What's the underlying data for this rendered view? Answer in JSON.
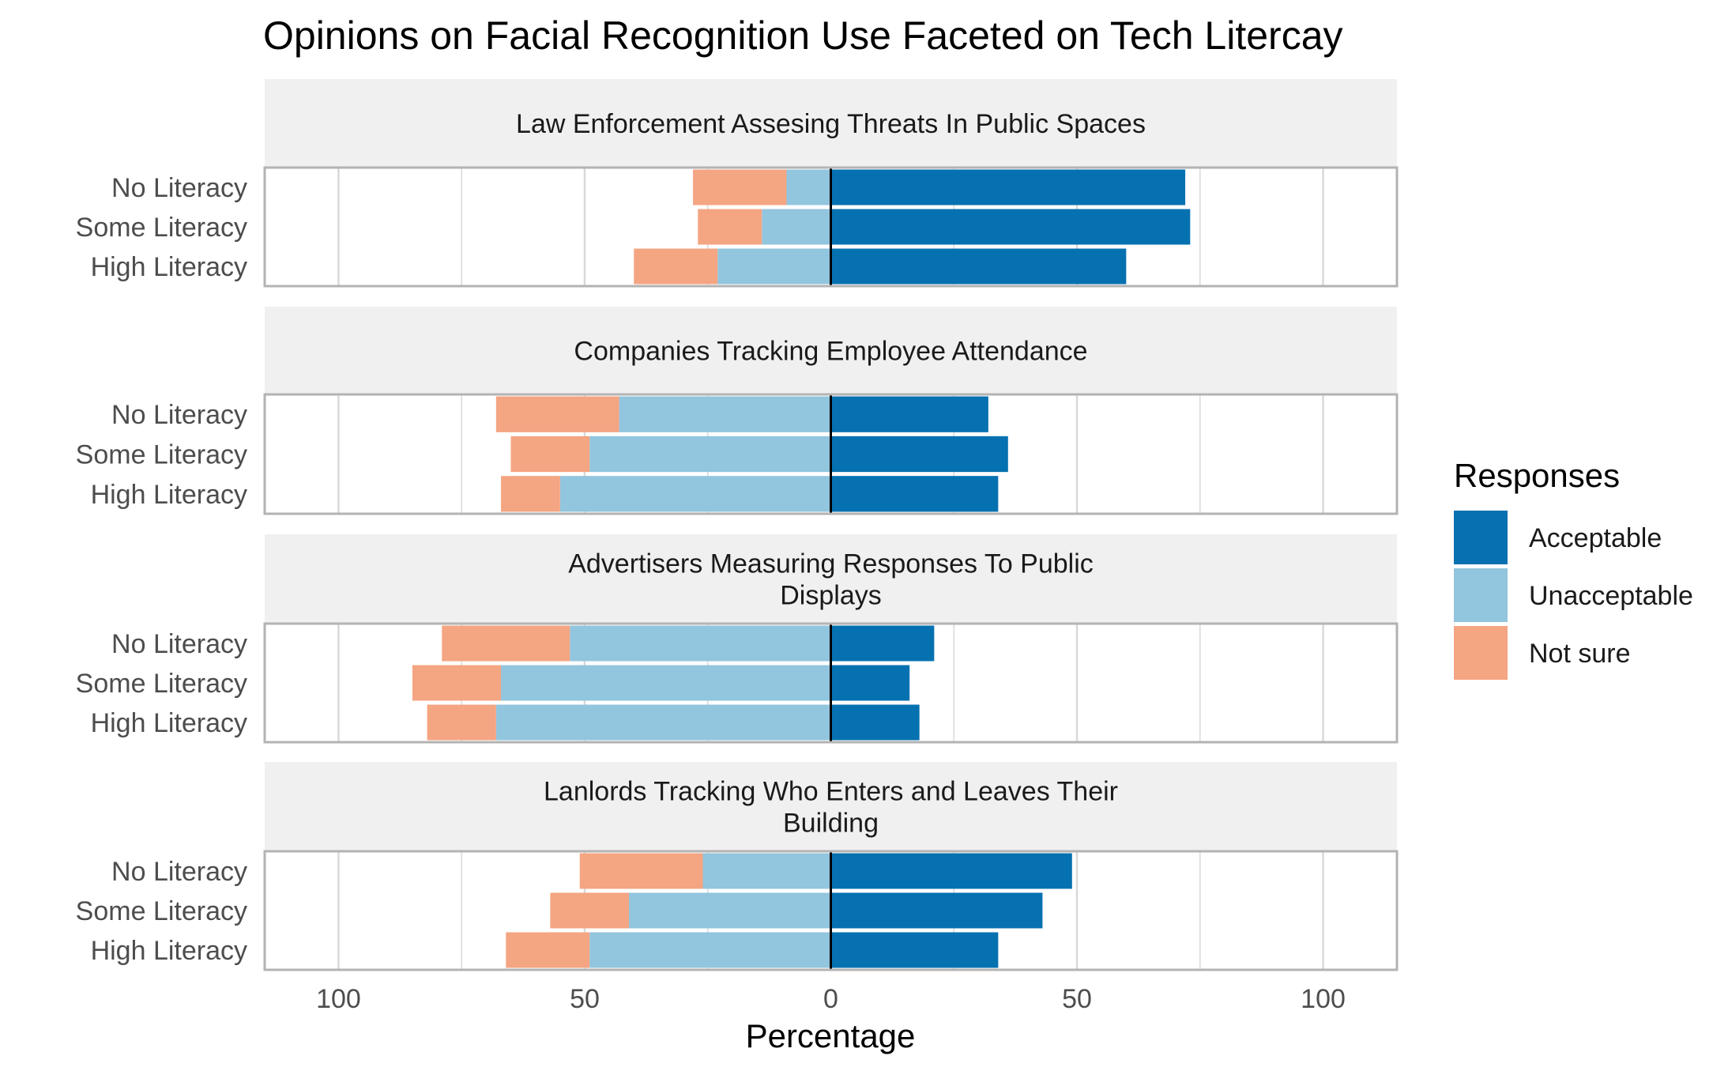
{
  "chart_data": {
    "type": "bar",
    "orientation": "horizontal",
    "stacking": "diverging",
    "title": "Opinions on Facial Recognition Use Faceted on Tech Litercay",
    "xlabel": "Percentage",
    "ylabel": "",
    "xlim": [
      -115,
      115
    ],
    "x_ticks": [
      -100,
      -50,
      0,
      50,
      100
    ],
    "x_tick_labels": [
      "100",
      "50",
      "0",
      "50",
      "100"
    ],
    "categories": [
      "No Literacy",
      "Some Literacy",
      "High Literacy"
    ],
    "grid": true,
    "legend": {
      "title": "Responses",
      "position": "right",
      "entries": [
        "Acceptable",
        "Unacceptable",
        "Not sure"
      ]
    },
    "colors": {
      "Acceptable": "#0571b0",
      "Unacceptable": "#92c5de",
      "Not sure": "#f4a582"
    },
    "facets": [
      {
        "title_lines": [
          "Law Enforcement Assesing Threats In Public Spaces"
        ],
        "series": [
          {
            "name": "Acceptable",
            "values": [
              72,
              73,
              60
            ]
          },
          {
            "name": "Unacceptable",
            "values": [
              9,
              14,
              23
            ]
          },
          {
            "name": "Not sure",
            "values": [
              19,
              13,
              17
            ]
          }
        ]
      },
      {
        "title_lines": [
          "Companies Tracking Employee Attendance"
        ],
        "series": [
          {
            "name": "Acceptable",
            "values": [
              32,
              36,
              34
            ]
          },
          {
            "name": "Unacceptable",
            "values": [
              43,
              49,
              55
            ]
          },
          {
            "name": "Not sure",
            "values": [
              25,
              16,
              12
            ]
          }
        ]
      },
      {
        "title_lines": [
          "Advertisers Measuring Responses To Public",
          "Displays"
        ],
        "series": [
          {
            "name": "Acceptable",
            "values": [
              21,
              16,
              18
            ]
          },
          {
            "name": "Unacceptable",
            "values": [
              53,
              67,
              68
            ]
          },
          {
            "name": "Not sure",
            "values": [
              26,
              18,
              14
            ]
          }
        ]
      },
      {
        "title_lines": [
          "Lanlords Tracking Who Enters and Leaves Their",
          "Building"
        ],
        "series": [
          {
            "name": "Acceptable",
            "values": [
              49,
              43,
              34
            ]
          },
          {
            "name": "Unacceptable",
            "values": [
              26,
              41,
              49
            ]
          },
          {
            "name": "Not sure",
            "values": [
              25,
              16,
              17
            ]
          }
        ]
      }
    ]
  }
}
